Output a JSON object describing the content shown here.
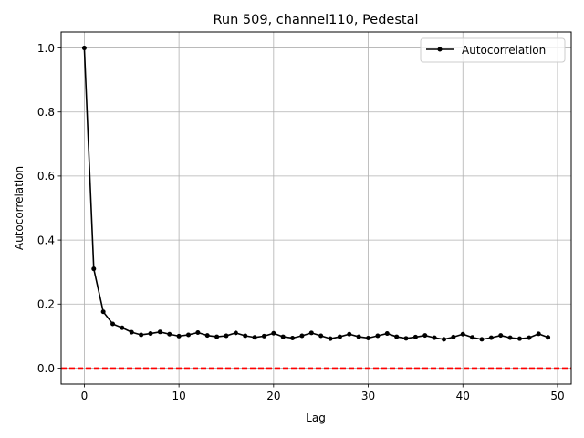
{
  "chart_data": {
    "type": "line",
    "title": "Run 509, channel110, Pedestal",
    "xlabel": "Lag",
    "ylabel": "Autocorrelation",
    "xlim": [
      -2.45,
      51.45
    ],
    "ylim": [
      -0.05,
      1.05
    ],
    "xticks": [
      0,
      10,
      20,
      30,
      40,
      50
    ],
    "yticks": [
      0.0,
      0.2,
      0.4,
      0.6,
      0.8,
      1.0
    ],
    "xtick_labels": [
      "0",
      "10",
      "20",
      "30",
      "40",
      "50"
    ],
    "ytick_labels": [
      "0.0",
      "0.2",
      "0.4",
      "0.6",
      "0.8",
      "1.0"
    ],
    "grid": true,
    "legend_position": "top-right",
    "series": [
      {
        "name": "Autocorrelation",
        "color": "#000000",
        "marker": "circle",
        "x": [
          0,
          1,
          2,
          3,
          4,
          5,
          6,
          7,
          8,
          9,
          10,
          11,
          12,
          13,
          14,
          15,
          16,
          17,
          18,
          19,
          20,
          21,
          22,
          23,
          24,
          25,
          26,
          27,
          28,
          29,
          30,
          31,
          32,
          33,
          34,
          35,
          36,
          37,
          38,
          39,
          40,
          41,
          42,
          43,
          44,
          45,
          46,
          47,
          48,
          49
        ],
        "y": [
          1.0,
          0.31,
          0.176,
          0.138,
          0.126,
          0.112,
          0.104,
          0.108,
          0.113,
          0.106,
          0.1,
          0.104,
          0.111,
          0.102,
          0.098,
          0.101,
          0.11,
          0.101,
          0.096,
          0.1,
          0.109,
          0.098,
          0.094,
          0.101,
          0.11,
          0.101,
          0.092,
          0.098,
          0.106,
          0.098,
          0.094,
          0.101,
          0.108,
          0.098,
          0.093,
          0.097,
          0.102,
          0.095,
          0.09,
          0.097,
          0.106,
          0.096,
          0.09,
          0.095,
          0.102,
          0.095,
          0.092,
          0.095,
          0.107,
          0.096
        ]
      }
    ],
    "reference_line": {
      "y": 0.0,
      "color": "#ff0000",
      "style": "dashed"
    }
  }
}
